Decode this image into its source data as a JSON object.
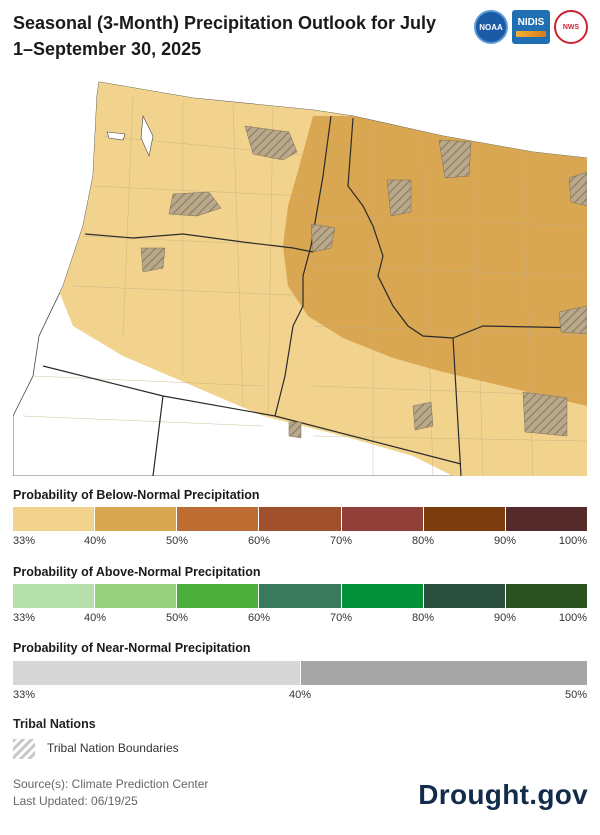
{
  "title": "Seasonal (3-Month) Precipitation Outlook for July 1–September 30, 2025",
  "logos": {
    "noaa": "NOAA",
    "nidis": "NIDIS",
    "nws": "NWS"
  },
  "legend_below": {
    "title": "Probability of Below-Normal Precipitation",
    "colors": [
      "#f1d38e",
      "#d9a652",
      "#bd6c32",
      "#a04f2d",
      "#904039",
      "#7b3c0e",
      "#542b2a"
    ],
    "ticks": [
      "33%",
      "40%",
      "50%",
      "60%",
      "70%",
      "80%",
      "90%",
      "100%"
    ]
  },
  "legend_above": {
    "title": "Probability of Above-Normal Precipitation",
    "colors": [
      "#b5e0ab",
      "#97d07f",
      "#4caf3c",
      "#3a7a5c",
      "#039239",
      "#2a4f3e",
      "#2c5120"
    ],
    "ticks": [
      "33%",
      "40%",
      "50%",
      "60%",
      "70%",
      "80%",
      "90%",
      "100%"
    ]
  },
  "legend_near": {
    "title": "Probability of Near-Normal Precipitation",
    "colors": [
      "#d6d6d6",
      "#a6a6a6"
    ],
    "ticks": [
      "33%",
      "40%",
      "50%"
    ]
  },
  "tribal": {
    "title": "Tribal Nations",
    "label": "Tribal Nation Boundaries"
  },
  "source": "Source(s): Climate Prediction Center",
  "updated": "Last Updated: 06/19/25",
  "brand": "Drought.gov"
}
